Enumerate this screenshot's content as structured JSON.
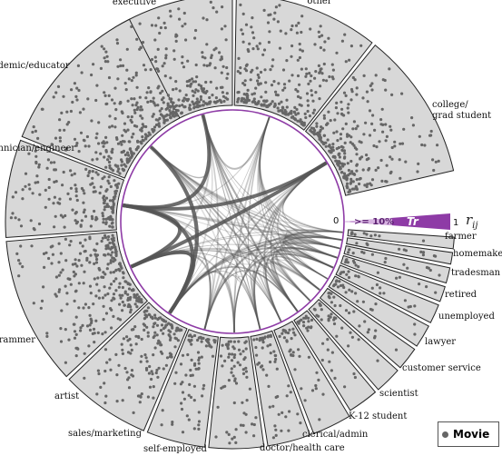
{
  "segments": [
    {
      "label": "executive"
    },
    {
      "label": "other"
    },
    {
      "label": "college/\ngrad student"
    },
    {
      "label": "0"
    },
    {
      "label": "farmer"
    },
    {
      "label": "homemaker"
    },
    {
      "label": "tradesman"
    },
    {
      "label": "retired"
    },
    {
      "label": "unemployed"
    },
    {
      "label": "lawyer"
    },
    {
      "label": "customer service"
    },
    {
      "label": "scientist"
    },
    {
      "label": "K-12 student"
    },
    {
      "label": "clerical/admin"
    },
    {
      "label": "doctor/health care"
    },
    {
      "label": "self-employed"
    },
    {
      "label": "sales/marketing"
    },
    {
      "label": "artist"
    },
    {
      "label": "programmer"
    },
    {
      "label": "technician/engineer"
    },
    {
      "label": "academic/educator"
    }
  ],
  "scale": {
    "min_label": "0",
    "threshold_label": ">= 10%",
    "symbol": "Tr",
    "max_label": "1",
    "rij_label": "r",
    "rij_sub": "ij",
    "accent_color": "#8e3ba6"
  },
  "legend": {
    "label": "Movie",
    "dot_color": "#666666"
  },
  "colors": {
    "panel": "#d8d8d8",
    "dot": "#666666",
    "ring": "#8e3ba6",
    "link": "#555555"
  }
}
